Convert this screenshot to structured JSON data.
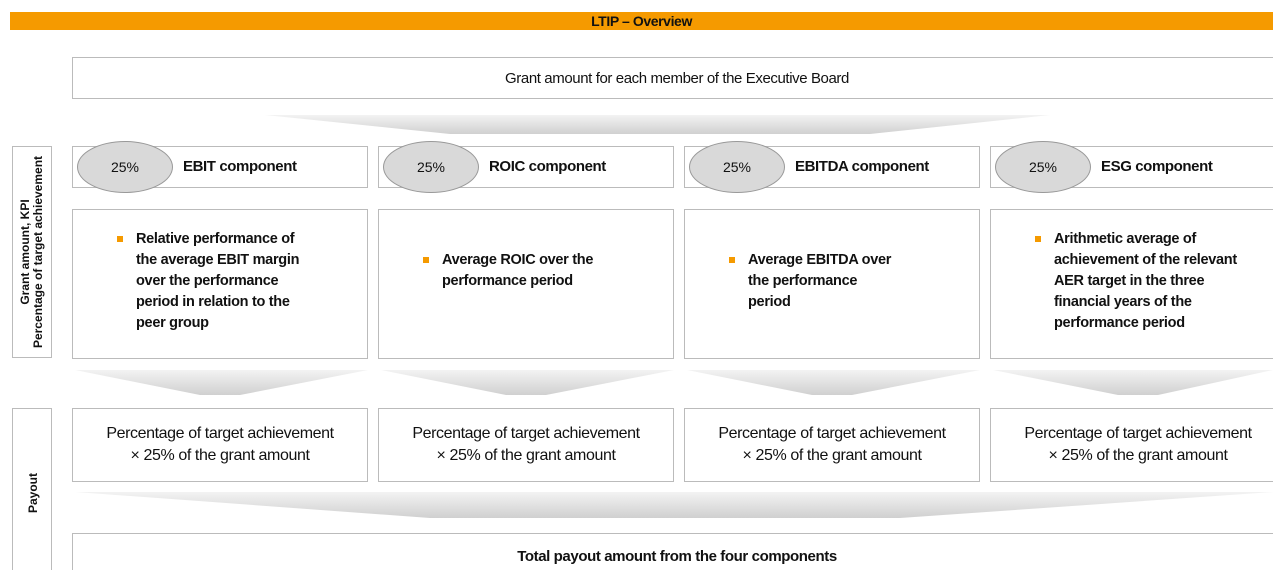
{
  "title": "LTIP – Overview",
  "grant": "Grant amount for each member of the Executive Board",
  "side_labels": {
    "kpi": [
      "Grant amount, KPI",
      "Percentage of target achievement"
    ],
    "payout": "Payout"
  },
  "components": [
    {
      "share": "25%",
      "name": "EBIT component",
      "description": "Relative performance of the average EBIT margin over the performance period in relation to the peer group",
      "payout": [
        "Percentage of target achievement",
        "× 25% of the grant amount"
      ]
    },
    {
      "share": "25%",
      "name": "ROIC component",
      "description": "Average ROIC over the performance period",
      "payout": [
        "Percentage of target achievement",
        "× 25% of the grant amount"
      ]
    },
    {
      "share": "25%",
      "name": "EBITDA component",
      "description": "Average EBITDA over the performance period",
      "payout": [
        "Percentage of target achievement",
        "× 25% of the grant amount"
      ]
    },
    {
      "share": "25%",
      "name": "ESG component",
      "description": "Arithmetic average of achievement of the relevant AER target in the three financial years of the performance period",
      "payout": [
        "Percentage of target achievement",
        "× 25% of the grant amount"
      ]
    }
  ],
  "total": "Total payout amount from the four components"
}
